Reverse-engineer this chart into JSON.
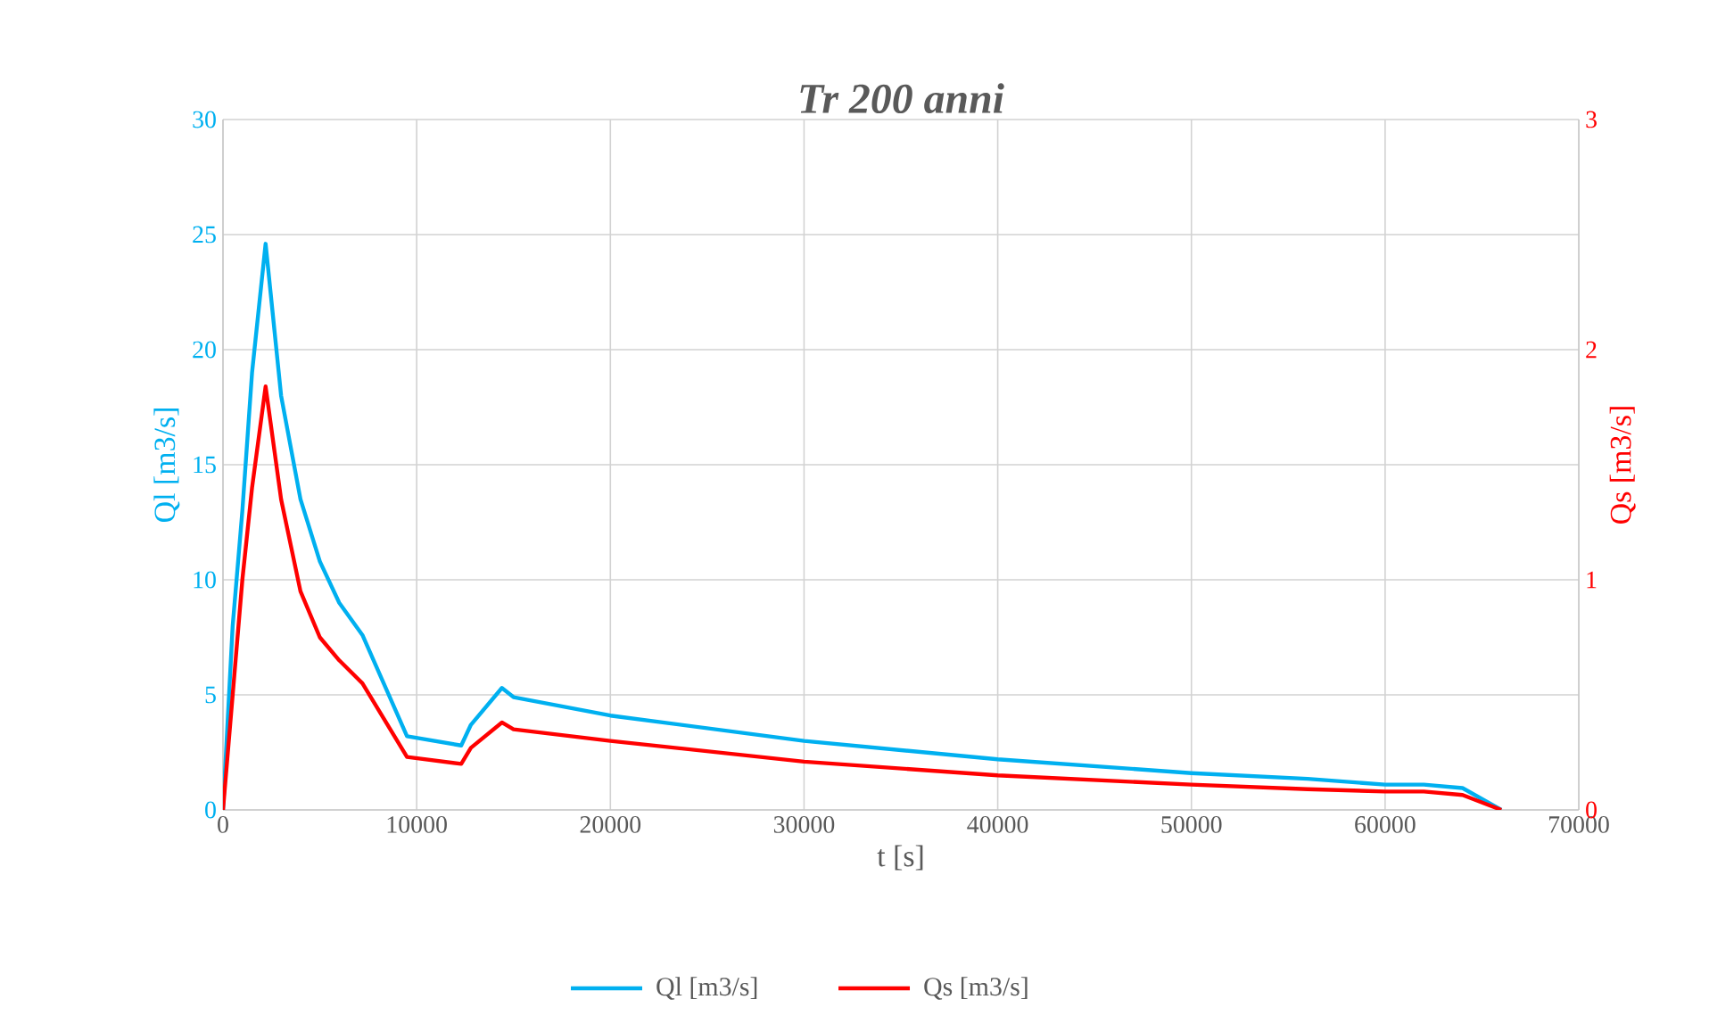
{
  "chart_data": {
    "type": "line",
    "title": "**Tr 200 anni**",
    "xlabel": "t [s]",
    "ylabel": "Ql [m3/s]",
    "y2label": "Qs [m3/s]",
    "x": [
      0,
      500,
      1000,
      1500,
      2200,
      3000,
      4000,
      5000,
      6000,
      7200,
      9500,
      12300,
      12800,
      14400,
      15000,
      20000,
      30000,
      40000,
      50000,
      56000,
      60000,
      62000,
      64000,
      66000
    ],
    "series": [
      {
        "name": "Ql [m3/s]",
        "color": "#00b0f0",
        "values": [
          0,
          8,
          13,
          19,
          24.6,
          18,
          13.5,
          10.8,
          9,
          7.6,
          3.2,
          2.8,
          3.7,
          5.3,
          4.9,
          4.1,
          3.0,
          2.2,
          1.6,
          1.35,
          1.1,
          1.1,
          0.95,
          0
        ]
      },
      {
        "name": "Qs [m3/s]",
        "color": "#ff0000",
        "axis": "y2",
        "values": [
          0,
          0.5,
          1.0,
          1.4,
          1.84,
          1.35,
          0.95,
          0.75,
          0.65,
          0.55,
          0.23,
          0.2,
          0.27,
          0.38,
          0.35,
          0.3,
          0.21,
          0.15,
          0.11,
          0.09,
          0.08,
          0.08,
          0.065,
          0
        ]
      }
    ],
    "xlim": [
      0,
      70000
    ],
    "xticks": [
      0,
      10000,
      20000,
      30000,
      40000,
      50000,
      60000,
      70000
    ],
    "ylim": [
      0,
      30
    ],
    "yticks": [
      0,
      5,
      10,
      15,
      20,
      25,
      30
    ],
    "y2lim": [
      0,
      3
    ],
    "y2ticks": [
      0,
      1,
      2,
      3
    ],
    "grid": true,
    "legend": "bottom",
    "marker": "none",
    "line_style": "solid"
  }
}
